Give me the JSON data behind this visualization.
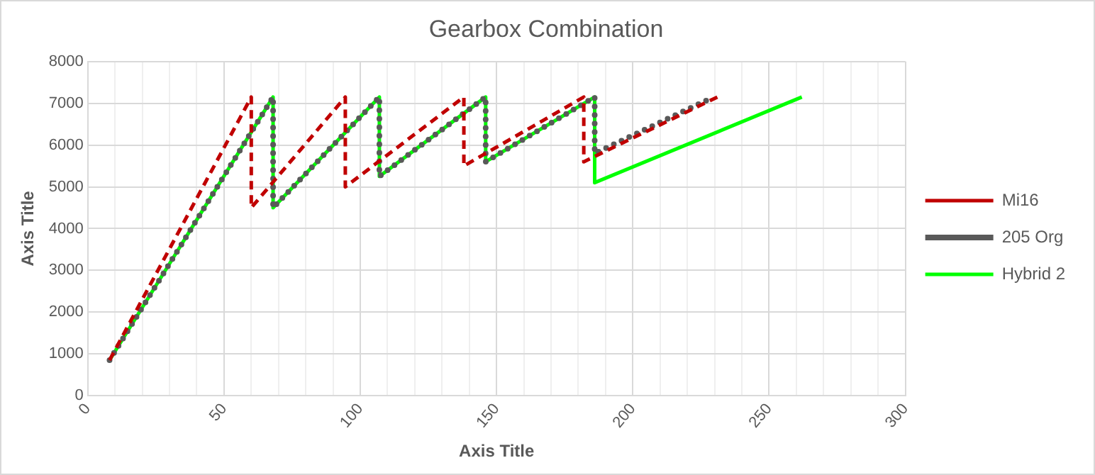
{
  "chart_data": {
    "type": "line",
    "title": "Gearbox Combination",
    "xlabel": "Axis Title",
    "ylabel": "Axis Title",
    "xlim": [
      0,
      300
    ],
    "xticks": [
      0,
      {
        "value": 10,
        "label": null
      },
      {
        "value": 20,
        "label": null
      },
      {
        "value": 30,
        "label": null
      },
      {
        "value": 40,
        "label": null
      },
      50,
      {
        "value": 60,
        "label": null
      },
      {
        "value": 70,
        "label": null
      },
      {
        "value": 80,
        "label": null
      },
      {
        "value": 90,
        "label": null
      },
      100,
      {
        "value": 110,
        "label": null
      },
      {
        "value": 120,
        "label": null
      },
      {
        "value": 130,
        "label": null
      },
      {
        "value": 140,
        "label": null
      },
      150,
      {
        "value": 160,
        "label": null
      },
      {
        "value": 170,
        "label": null
      },
      {
        "value": 180,
        "label": null
      },
      {
        "value": 190,
        "label": null
      },
      200,
      {
        "value": 210,
        "label": null
      },
      {
        "value": 220,
        "label": null
      },
      {
        "value": 230,
        "label": null
      },
      {
        "value": 240,
        "label": null
      },
      250,
      {
        "value": 260,
        "label": null
      },
      {
        "value": 270,
        "label": null
      },
      {
        "value": 280,
        "label": null
      },
      {
        "value": 290,
        "label": null
      },
      300
    ],
    "ylim": [
      0,
      8000
    ],
    "yticks": [
      0,
      1000,
      2000,
      3000,
      4000,
      5000,
      6000,
      7000,
      8000
    ],
    "grid": true,
    "legend": "right",
    "marker": "none",
    "series": [
      {
        "name": "Mi16",
        "color": "#c00000",
        "line_style": "dashed",
        "x": [
          8,
          60,
          60,
          94.5,
          94.5,
          138,
          138,
          182,
          182,
          231
        ],
        "values": [
          850,
          7150,
          4500,
          7150,
          5000,
          7150,
          5500,
          7150,
          5600,
          7150
        ]
      },
      {
        "name": "205 Org",
        "color": "#595959",
        "line_style": "dotted",
        "x": [
          8,
          68,
          68,
          107,
          107,
          146,
          146,
          186,
          186,
          228
        ],
        "values": [
          850,
          7150,
          4500,
          7150,
          5250,
          7150,
          5600,
          7150,
          5800,
          7100
        ]
      },
      {
        "name": "Hybrid 2",
        "color": "#00ff00",
        "line_style": "solid",
        "x": [
          8,
          68,
          68,
          107,
          107,
          146,
          146,
          186,
          186,
          262
        ],
        "values": [
          850,
          7150,
          4500,
          7150,
          5250,
          7150,
          5600,
          7150,
          5100,
          7150
        ]
      }
    ]
  }
}
